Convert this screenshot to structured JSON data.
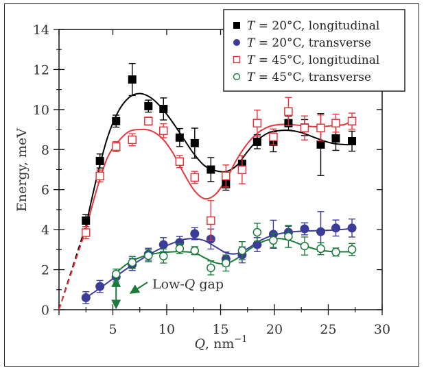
{
  "chart_data": {
    "type": "scatter",
    "title": "",
    "xlabel": "Q, nm",
    "xlabel_sup": "−1",
    "ylabel": "Energy, meV",
    "xlim": [
      0,
      30
    ],
    "ylim": [
      0,
      14
    ],
    "xticks": [
      5,
      10,
      15,
      20,
      25,
      30
    ],
    "xticks_minor": [
      2.5,
      7.5,
      12.5,
      17.5,
      22.5,
      27.5
    ],
    "yticks": [
      0,
      2,
      4,
      6,
      8,
      10,
      12,
      14
    ],
    "yticks_minor": [
      1,
      3,
      5,
      7,
      9,
      11,
      13
    ],
    "grid": false,
    "legend_position": "top-right",
    "annotation": {
      "text": "Low-Q gap",
      "color": "#1a7a3a",
      "gap_q": 5.3,
      "gap_top": 1.7
    },
    "series": [
      {
        "name": "T = 20°C, longitudinal",
        "marker": "filled-square",
        "color": "#000000",
        "x": [
          2.5,
          3.8,
          5.3,
          6.8,
          8.3,
          9.7,
          11.2,
          12.6,
          14.1,
          15.5,
          17.0,
          18.4,
          19.9,
          21.3,
          22.8,
          24.3,
          25.7,
          27.2
        ],
        "y": [
          4.45,
          7.43,
          9.42,
          11.5,
          10.17,
          10.03,
          8.6,
          8.32,
          7.0,
          6.27,
          7.29,
          8.39,
          8.39,
          9.32,
          9.1,
          8.25,
          8.56,
          8.42
        ],
        "err": [
          0.3,
          0.35,
          0.3,
          0.8,
          0.3,
          0.55,
          0.45,
          0.75,
          0.6,
          0.3,
          0.4,
          0.35,
          0.5,
          0.35,
          0.4,
          1.55,
          0.6,
          0.5
        ],
        "fit_x": [
          2.5,
          3.5,
          4.5,
          5.5,
          6.5,
          7.5,
          8.5,
          9.5,
          10.5,
          11.5,
          12.5,
          13.5,
          14.5,
          15.5,
          16.5,
          17.5,
          18.5,
          19.5,
          20.5,
          21.5,
          22.5,
          23.5,
          24.5,
          25.5,
          26.5,
          27.2
        ],
        "fit_y": [
          4.2,
          6.6,
          8.6,
          9.9,
          10.6,
          10.8,
          10.6,
          10.1,
          9.4,
          8.6,
          7.8,
          7.2,
          6.95,
          6.9,
          7.2,
          7.9,
          8.5,
          8.85,
          8.95,
          8.95,
          8.85,
          8.65,
          8.45,
          8.3,
          8.25,
          8.25
        ],
        "extrap": true
      },
      {
        "name": "T = 20°C, transverse",
        "marker": "filled-circle",
        "color": "#3b3b98",
        "x": [
          2.5,
          3.8,
          5.3,
          6.8,
          8.3,
          9.7,
          11.2,
          12.6,
          14.1,
          15.5,
          17.0,
          18.4,
          19.9,
          21.3,
          22.8,
          24.3,
          25.7,
          27.2
        ],
        "y": [
          0.6,
          1.16,
          1.64,
          2.26,
          2.77,
          3.25,
          3.36,
          3.8,
          3.53,
          2.53,
          2.74,
          3.25,
          3.77,
          3.87,
          4.04,
          3.9,
          4.08,
          4.08
        ],
        "err": [
          0.3,
          0.3,
          0.25,
          0.3,
          0.3,
          0.35,
          0.3,
          0.3,
          0.5,
          0.35,
          0.4,
          0.35,
          0.7,
          0.3,
          0.3,
          1.0,
          0.4,
          0.45
        ],
        "fit_x": [
          2.5,
          4,
          5.5,
          7,
          8.5,
          10,
          11.5,
          12.5,
          13.5,
          14.5,
          15.5,
          16.5,
          17.5,
          18.5,
          19.5,
          20.5,
          21.5,
          22.5,
          24,
          25.5,
          27.2
        ],
        "fit_y": [
          0.6,
          1.15,
          1.75,
          2.3,
          2.8,
          3.2,
          3.5,
          3.55,
          3.45,
          3.15,
          2.85,
          2.8,
          3.05,
          3.4,
          3.65,
          3.8,
          3.88,
          3.92,
          3.95,
          3.98,
          4.05
        ]
      },
      {
        "name": "T = 45°C, longitudinal",
        "marker": "open-square",
        "color": "#e8353b",
        "x": [
          2.5,
          3.8,
          5.3,
          6.8,
          8.3,
          9.7,
          11.2,
          12.6,
          14.1,
          15.5,
          17.0,
          18.4,
          19.9,
          21.3,
          22.8,
          24.3,
          25.7,
          27.2
        ],
        "y": [
          3.85,
          6.68,
          8.15,
          8.49,
          9.42,
          8.94,
          7.4,
          6.61,
          4.45,
          6.68,
          6.99,
          9.32,
          8.63,
          9.9,
          9.08,
          9.08,
          9.32,
          9.42
        ],
        "err": [
          0.3,
          0.3,
          0.25,
          0.3,
          0.2,
          0.35,
          0.3,
          0.3,
          1.0,
          0.55,
          0.7,
          0.65,
          0.4,
          0.7,
          0.6,
          0.65,
          0.45,
          0.4
        ],
        "fit_x": [
          2.5,
          3.5,
          4.5,
          5.5,
          6.5,
          7.5,
          8.5,
          9.5,
          10.5,
          11.5,
          12.5,
          13.5,
          14.5,
          15.5,
          16.5,
          17.5,
          18.5,
          19.5,
          20.5,
          21.5,
          22.5,
          23.5,
          24.5,
          25.5,
          26.5,
          27.2
        ],
        "fit_y": [
          4.0,
          6.0,
          7.6,
          8.4,
          8.9,
          9.0,
          8.95,
          8.6,
          7.9,
          6.9,
          6.0,
          5.55,
          5.75,
          6.5,
          7.5,
          8.3,
          8.85,
          9.15,
          9.25,
          9.25,
          9.2,
          9.15,
          9.15,
          9.2,
          9.25,
          9.45
        ],
        "extrap": true
      },
      {
        "name": "T = 45°C, transverse",
        "marker": "open-circle",
        "color": "#1a7a3a",
        "x": [
          5.3,
          6.8,
          8.3,
          9.7,
          11.2,
          12.6,
          14.1,
          15.5,
          17.0,
          18.4,
          19.9,
          21.3,
          22.8,
          24.3,
          25.7,
          27.2
        ],
        "y": [
          1.78,
          2.36,
          2.7,
          2.68,
          3.05,
          2.95,
          2.09,
          2.33,
          2.95,
          3.87,
          3.46,
          3.66,
          3.18,
          3.05,
          2.88,
          3.01
        ],
        "err": [
          0.25,
          0.3,
          0.3,
          0.35,
          0.25,
          0.2,
          0.35,
          0.4,
          0.45,
          0.45,
          0.35,
          0.55,
          0.45,
          0.3,
          0.2,
          0.3
        ],
        "fit_x": [
          5.3,
          6.5,
          8,
          9.5,
          11,
          12.5,
          13.5,
          14.5,
          15.5,
          16.5,
          17.5,
          18.5,
          19.5,
          20.5,
          21.5,
          22.5,
          24,
          25.5,
          27.2
        ],
        "fit_y": [
          1.85,
          2.35,
          2.7,
          2.85,
          2.9,
          2.85,
          2.6,
          2.35,
          2.3,
          2.55,
          2.95,
          3.3,
          3.5,
          3.55,
          3.45,
          3.25,
          3.0,
          2.9,
          2.9
        ]
      }
    ]
  }
}
